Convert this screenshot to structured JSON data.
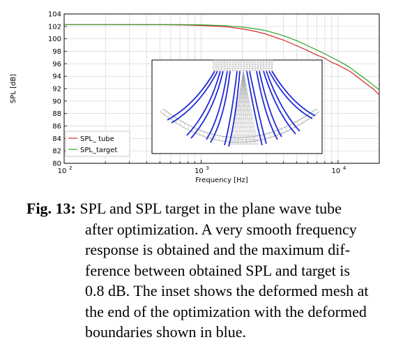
{
  "chart_data": {
    "type": "line",
    "xlabel": "Frequency [Hz]",
    "ylabel": "SPL [dB]",
    "x_scale": "log",
    "xlim": [
      100,
      20000
    ],
    "ylim": [
      80,
      104
    ],
    "x_ticks": [
      {
        "label": "10",
        "exp": "2",
        "value": 100
      },
      {
        "label": "10",
        "exp": "3",
        "value": 1000
      },
      {
        "label": "10",
        "exp": "4",
        "value": 10000
      }
    ],
    "y_ticks": [
      80,
      82,
      84,
      86,
      88,
      90,
      92,
      94,
      96,
      98,
      100,
      102,
      104
    ],
    "grid": true,
    "legend_position": "bottom-left",
    "series": [
      {
        "name": "SPL_ tube",
        "color": "#d62728",
        "x": [
          100,
          200,
          500,
          800,
          1000,
          1500,
          2000,
          2500,
          3000,
          4000,
          5000,
          6000,
          7000,
          8000,
          9000,
          10000,
          11000,
          12000,
          14000,
          16000,
          18000,
          20000
        ],
        "values": [
          102.3,
          102.3,
          102.28,
          102.22,
          102.15,
          101.95,
          101.6,
          101.2,
          100.75,
          99.8,
          98.9,
          98.1,
          97.4,
          96.9,
          96.2,
          95.8,
          95.3,
          94.9,
          93.8,
          92.8,
          92.0,
          91.0
        ]
      },
      {
        "name": "SPL_target",
        "color": "#2ca02c",
        "x": [
          100,
          200,
          500,
          800,
          1000,
          1500,
          2000,
          2500,
          3000,
          4000,
          5000,
          6000,
          7000,
          8000,
          9000,
          10000,
          11000,
          12000,
          14000,
          16000,
          18000,
          20000
        ],
        "values": [
          102.3,
          102.3,
          102.3,
          102.28,
          102.25,
          102.1,
          101.9,
          101.6,
          101.3,
          100.5,
          99.7,
          98.9,
          98.2,
          97.6,
          97.0,
          96.5,
          96.0,
          95.5,
          94.4,
          93.5,
          92.6,
          91.8
        ]
      }
    ]
  },
  "caption": {
    "label": "Fig. 13:",
    "lines": [
      "SPL and SPL target in the plane wave tube",
      "after optimization. A very smooth frequency",
      "response is obtained and the maximum dif-",
      "ference between obtained SPL and target is",
      "0.8 dB. The inset shows the deformed mesh at",
      "the end of the optimization with the deformed",
      "boundaries shown in blue."
    ]
  }
}
